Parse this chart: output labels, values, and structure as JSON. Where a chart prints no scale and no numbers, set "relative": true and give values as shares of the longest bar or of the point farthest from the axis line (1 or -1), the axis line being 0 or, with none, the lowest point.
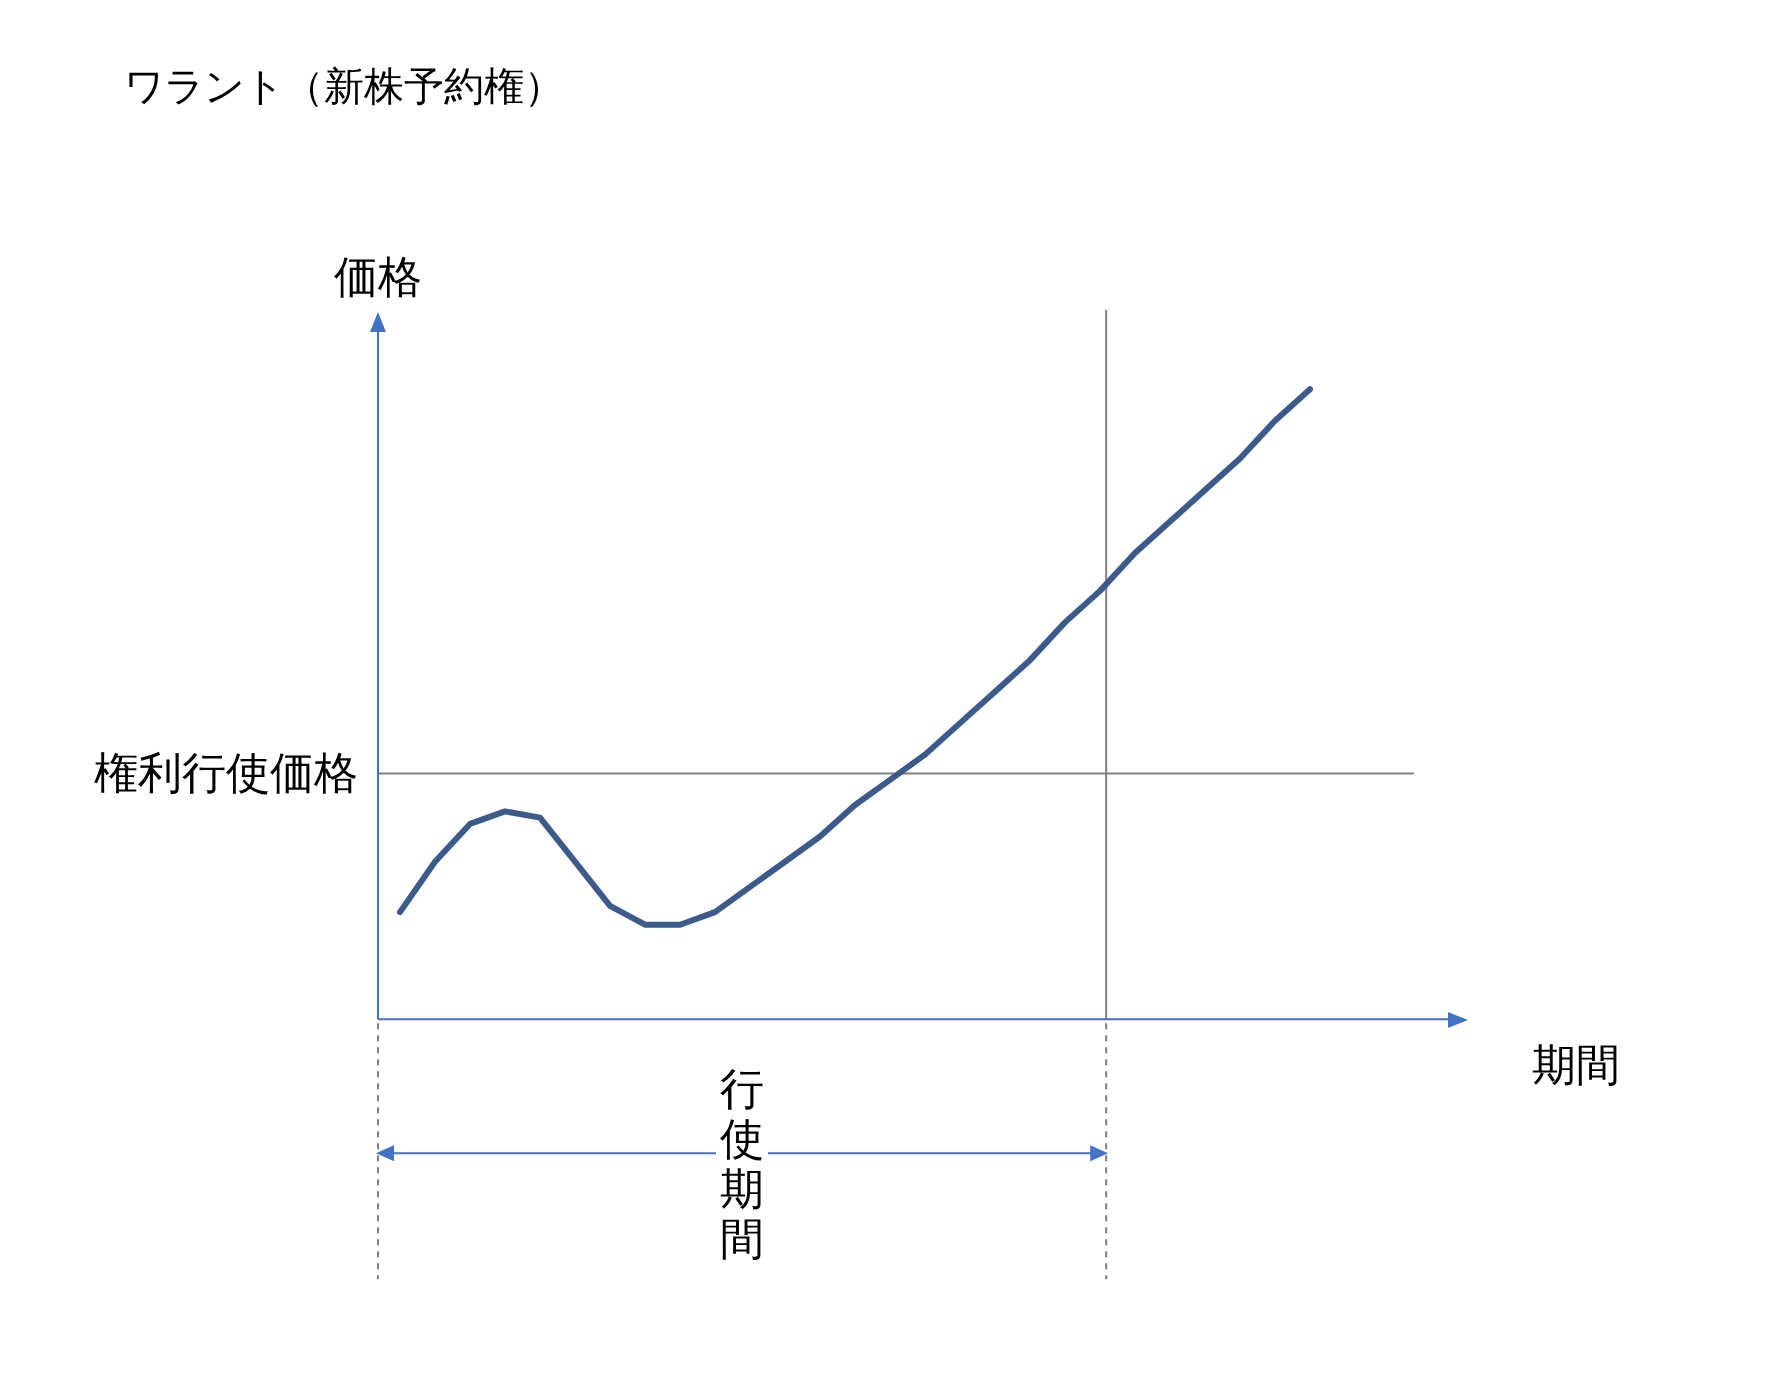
{
  "chart_data": {
    "type": "line",
    "title": "ワラント（新株予約権）",
    "xlabel": "期間",
    "ylabel": "価格",
    "relative": true,
    "grid": false,
    "legend": false,
    "marker": "none",
    "line_style": "solid",
    "categories": [
      null,
      null,
      null,
      null,
      null,
      null,
      null,
      null,
      null,
      null,
      null,
      null,
      null,
      null,
      null,
      null,
      null,
      null,
      null,
      null,
      null,
      null,
      null,
      null,
      null,
      null,
      null
    ],
    "series": [
      {
        "color": "#3c5a8a",
        "values": [
          0.17,
          0.25,
          0.31,
          0.33,
          0.32,
          0.25,
          0.18,
          0.15,
          0.15,
          0.17,
          0.21,
          0.25,
          0.29,
          0.34,
          0.38,
          0.42,
          0.47,
          0.52,
          0.57,
          0.63,
          0.68,
          0.74,
          0.79,
          0.84,
          0.89,
          0.95,
          1
        ]
      }
    ],
    "ref_lines": [
      {
        "axis": "y",
        "value": 0.39,
        "label": "権利行使価格",
        "color": "#808080"
      }
    ],
    "annotations": [
      "行使期間"
    ]
  }
}
